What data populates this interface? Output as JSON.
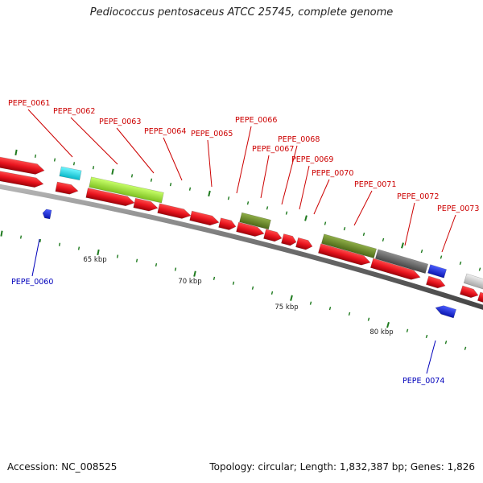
{
  "title": "Pediococcus pentosaceus ATCC 25745, complete genome",
  "footer": {
    "accession": "Accession: NC_008525",
    "topology": "Topology: circular; Length: 1,832,387 bp; Genes: 1,826"
  },
  "colors": {
    "cds": "#e8141e",
    "backbone": "#7a7a7a",
    "olive": "#6e8c2c",
    "lime": "#a6e83a",
    "cyan": "#22e4f2",
    "dark_gray": "#6a6a6a",
    "light_gray": "#cfcfcf",
    "blue": "#1a2ee8",
    "tick": "#1e7a1e",
    "label_red": "#cc0000",
    "label_blue": "#0000bb"
  },
  "kbp_labels": [
    "65 kbp",
    "70 kbp",
    "75 kbp",
    "80 kbp"
  ],
  "gene_labels": [
    {
      "text": "PEPE_0060",
      "strand": "minus"
    },
    {
      "text": "PEPE_0061",
      "strand": "plus"
    },
    {
      "text": "PEPE_0062",
      "strand": "plus"
    },
    {
      "text": "PEPE_0063",
      "strand": "plus"
    },
    {
      "text": "PEPE_0064",
      "strand": "plus"
    },
    {
      "text": "PEPE_0065",
      "strand": "plus"
    },
    {
      "text": "PEPE_0066",
      "strand": "plus"
    },
    {
      "text": "PEPE_0067",
      "strand": "plus"
    },
    {
      "text": "PEPE_0068",
      "strand": "plus"
    },
    {
      "text": "PEPE_0069",
      "strand": "plus"
    },
    {
      "text": "PEPE_0070",
      "strand": "plus"
    },
    {
      "text": "PEPE_0071",
      "strand": "plus"
    },
    {
      "text": "PEPE_0072",
      "strand": "plus"
    },
    {
      "text": "PEPE_0073",
      "strand": "plus"
    },
    {
      "text": "PEPE_0074",
      "strand": "minus"
    }
  ]
}
